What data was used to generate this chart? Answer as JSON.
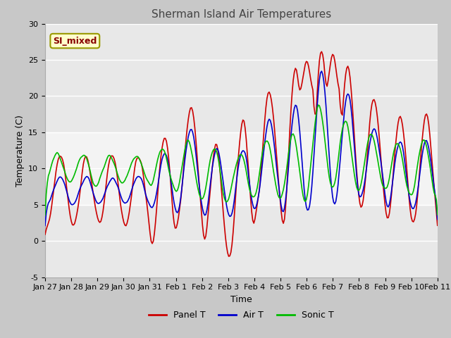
{
  "title": "Sherman Island Air Temperatures",
  "xlabel": "Time",
  "ylabel": "Temperature (C)",
  "ylim": [
    -5,
    30
  ],
  "yticks": [
    -5,
    0,
    5,
    10,
    15,
    20,
    25,
    30
  ],
  "x_labels": [
    "Jan 27",
    "Jan 28",
    "Jan 29",
    "Jan 30",
    "Jan 31",
    "Feb 1",
    "Feb 2",
    "Feb 3",
    "Feb 4",
    "Feb 5",
    "Feb 6",
    "Feb 7",
    "Feb 8",
    "Feb 9",
    "Feb 10",
    "Feb 11"
  ],
  "panel_color": "#cc0000",
  "air_color": "#0000cc",
  "sonic_color": "#00bb00",
  "fig_bg": "#c8c8c8",
  "plot_bg": "#e8e8e8",
  "legend_box_color": "#ffffcc",
  "legend_box_edge": "#999900",
  "si_mixed_color": "#880000",
  "grid_color": "#ffffff",
  "shaded_band_low": 5,
  "shaded_band_high": 15,
  "title_fontsize": 11,
  "axis_fontsize": 9,
  "tick_fontsize": 8,
  "legend_fontsize": 9,
  "line_width": 1.2
}
